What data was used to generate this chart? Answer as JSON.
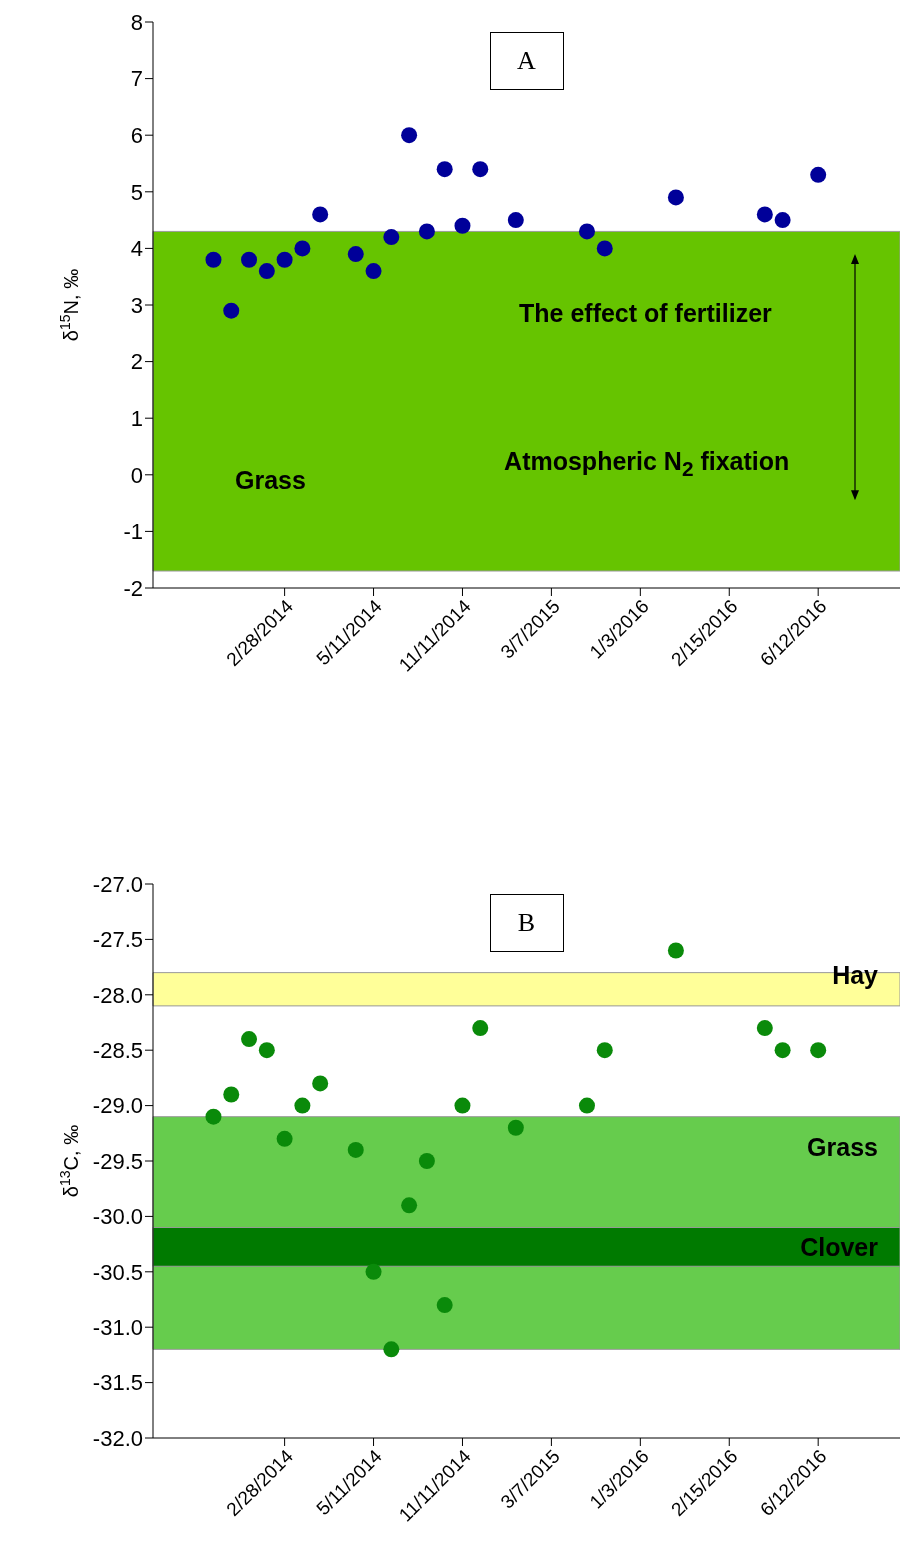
{
  "chart_data": [
    {
      "type": "scatter",
      "title": "A",
      "ylabel": "δ$^{15}$N, ‰",
      "categories": [
        null,
        null,
        null,
        null,
        "2/28/2014",
        null,
        null,
        null,
        null,
        "5/11/2014",
        null,
        null,
        null,
        null,
        "11/11/2014",
        null,
        null,
        null,
        null,
        "3/7/2015",
        null,
        null,
        null,
        null,
        "1/3/2016",
        null,
        null,
        null,
        null,
        "2/15/2016",
        null,
        null,
        null,
        null,
        "6/12/2016"
      ],
      "series": [
        {
          "color": "#000099",
          "values": [
            3.8,
            2.9,
            3.8,
            3.6,
            3.8,
            4.0,
            4.6,
            null,
            3.9,
            3.6,
            4.2,
            6.0,
            4.3,
            5.4,
            4.4,
            5.4,
            null,
            4.5,
            null,
            null,
            null,
            4.3,
            4.0,
            null,
            null,
            null,
            4.9,
            null,
            null,
            null,
            null,
            4.6,
            4.5,
            null,
            5.3
          ]
        }
      ],
      "marker": "circle",
      "ylim": [
        -2,
        8
      ],
      "yticks": [
        -2,
        -1,
        0,
        1,
        2,
        3,
        4,
        5,
        6,
        7,
        8
      ],
      "grid": false,
      "legend": false,
      "bands": [
        {
          "axis": "y",
          "from": -1.7,
          "to": 4.3,
          "label": "Grass",
          "color": "#66c400"
        }
      ],
      "annotations": [
        "The effect of fertilizer",
        "Atmospheric N$_{2}$ fixation"
      ]
    },
    {
      "type": "scatter",
      "title": "B",
      "ylabel": "δ$^{13}$C, ‰",
      "categories": [
        null,
        null,
        null,
        null,
        "2/28/2014",
        null,
        null,
        null,
        null,
        "5/11/2014",
        null,
        null,
        null,
        null,
        "11/11/2014",
        null,
        null,
        null,
        null,
        "3/7/2015",
        null,
        null,
        null,
        null,
        "1/3/2016",
        null,
        null,
        null,
        null,
        "2/15/2016",
        null,
        null,
        null,
        null,
        "6/12/2016"
      ],
      "series": [
        {
          "color": "#0a8a0a",
          "values": [
            -29.1,
            -28.9,
            -28.4,
            -28.5,
            -29.3,
            -29.0,
            -28.8,
            null,
            -29.4,
            -30.5,
            -31.2,
            -29.9,
            -29.5,
            -30.8,
            -29.0,
            -28.3,
            null,
            -29.2,
            null,
            null,
            null,
            -29.0,
            -28.5,
            null,
            null,
            null,
            -27.6,
            null,
            null,
            null,
            null,
            -28.3,
            -28.5,
            null,
            -28.5
          ]
        }
      ],
      "marker": "circle",
      "ylim": [
        -32,
        -27
      ],
      "yticks": [
        {
          "value": -32,
          "label": "-32.0"
        },
        {
          "value": -31.5,
          "label": "-31.5"
        },
        {
          "value": -31,
          "label": "-31.0"
        },
        {
          "value": -30.5,
          "label": "-30.5"
        },
        {
          "value": -30,
          "label": "-30.0"
        },
        {
          "value": -29.5,
          "label": "-29.5"
        },
        {
          "value": -29,
          "label": "-29.0"
        },
        {
          "value": -28.5,
          "label": "-28.5"
        },
        {
          "value": -28,
          "label": "-28.0"
        },
        {
          "value": -27.5,
          "label": "-27.5"
        },
        {
          "value": -27,
          "label": "-27.0"
        }
      ],
      "grid": false,
      "legend": false,
      "bands": [
        {
          "axis": "y",
          "from": -28.1,
          "to": -27.8,
          "label": "Hay",
          "color": "#ffff99"
        },
        {
          "axis": "y",
          "from": -31.2,
          "to": -29.1,
          "label": "Grass",
          "color": "#66cc4d"
        },
        {
          "axis": "y",
          "from": -30.45,
          "to": -30.1,
          "label": "Clover",
          "color": "#007a00"
        }
      ]
    }
  ]
}
